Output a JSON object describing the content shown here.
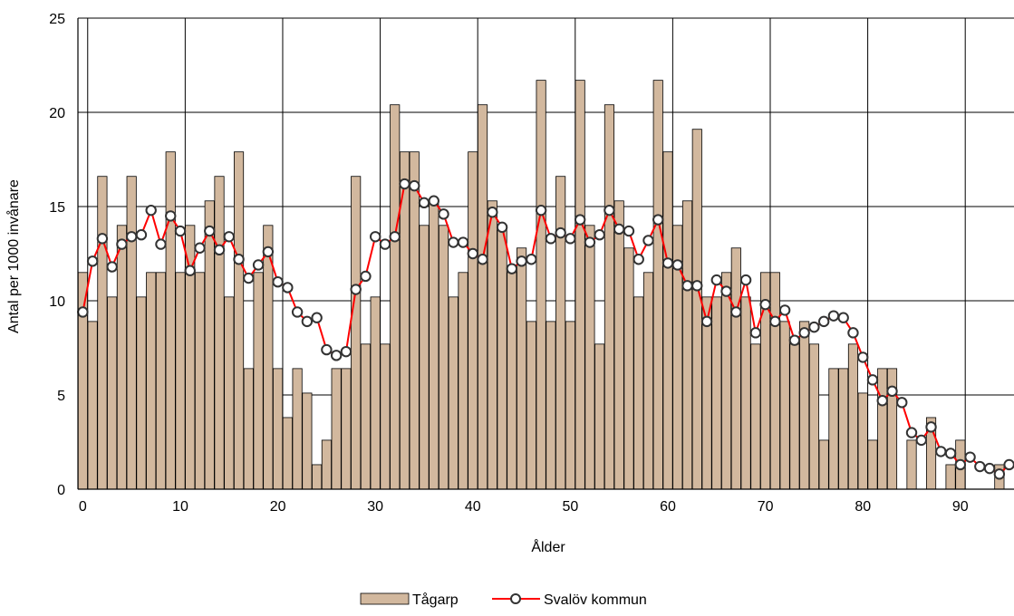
{
  "chart_data": {
    "type": "bar",
    "xlabel": "Ålder",
    "ylabel": "Antal per 1000 invånare",
    "ylim": [
      0,
      25
    ],
    "xlim": [
      -0.5,
      95.5
    ],
    "x_ticks": [
      0,
      10,
      20,
      30,
      40,
      50,
      60,
      70,
      80,
      90
    ],
    "y_ticks": [
      0,
      5,
      10,
      15,
      20,
      25
    ],
    "grid": true,
    "legend_position": "bottom",
    "categories": [
      0,
      1,
      2,
      3,
      4,
      5,
      6,
      7,
      8,
      9,
      10,
      11,
      12,
      13,
      14,
      15,
      16,
      17,
      18,
      19,
      20,
      21,
      22,
      23,
      24,
      25,
      26,
      27,
      28,
      29,
      30,
      31,
      32,
      33,
      34,
      35,
      36,
      37,
      38,
      39,
      40,
      41,
      42,
      43,
      44,
      45,
      46,
      47,
      48,
      49,
      50,
      51,
      52,
      53,
      54,
      55,
      56,
      57,
      58,
      59,
      60,
      61,
      62,
      63,
      64,
      65,
      66,
      67,
      68,
      69,
      70,
      71,
      72,
      73,
      74,
      75,
      76,
      77,
      78,
      79,
      80,
      81,
      82,
      83,
      84,
      85,
      86,
      87,
      88,
      89,
      90,
      91,
      92,
      93,
      94,
      95
    ],
    "series": [
      {
        "name": "Tågarp",
        "kind": "bar",
        "color": "#d2b89e",
        "values": [
          11.5,
          8.9,
          16.6,
          10.2,
          14.0,
          16.6,
          10.2,
          11.5,
          11.5,
          17.9,
          11.5,
          14.0,
          11.5,
          15.3,
          16.6,
          10.2,
          17.9,
          6.4,
          11.5,
          14.0,
          6.4,
          3.8,
          6.4,
          5.1,
          1.3,
          2.6,
          6.4,
          6.4,
          16.6,
          7.7,
          10.2,
          7.7,
          20.4,
          17.9,
          17.9,
          14.0,
          15.3,
          14.0,
          10.2,
          11.5,
          17.9,
          20.4,
          15.3,
          14.0,
          11.5,
          12.8,
          8.9,
          21.7,
          8.9,
          16.6,
          8.9,
          21.7,
          14.0,
          7.7,
          20.4,
          15.3,
          12.8,
          10.2,
          11.5,
          21.7,
          17.9,
          14.0,
          15.3,
          19.1,
          10.2,
          10.2,
          11.5,
          12.8,
          10.2,
          7.7,
          11.5,
          11.5,
          8.9,
          7.7,
          8.9,
          7.7,
          2.6,
          6.4,
          6.4,
          7.7,
          5.1,
          2.6,
          6.4,
          6.4,
          0,
          2.6,
          0,
          3.8,
          0,
          1.3,
          2.6,
          0,
          0,
          0,
          1.3,
          0
        ]
      },
      {
        "name": "Svalöv kommun",
        "kind": "line",
        "color": "#ff0000",
        "values": [
          9.4,
          12.1,
          13.3,
          11.8,
          13.0,
          13.4,
          13.5,
          14.8,
          13.0,
          14.5,
          13.7,
          11.6,
          12.8,
          13.7,
          12.7,
          13.4,
          12.2,
          11.2,
          11.9,
          12.6,
          11.0,
          10.7,
          9.4,
          8.9,
          9.1,
          7.4,
          7.1,
          7.3,
          10.6,
          11.3,
          13.4,
          13.0,
          13.4,
          16.2,
          16.1,
          15.2,
          15.3,
          14.6,
          13.1,
          13.1,
          12.5,
          12.2,
          14.7,
          13.9,
          11.7,
          12.1,
          12.2,
          14.8,
          13.3,
          13.6,
          13.3,
          14.3,
          13.1,
          13.5,
          14.8,
          13.8,
          13.7,
          12.2,
          13.2,
          14.3,
          12.0,
          11.9,
          10.8,
          10.8,
          8.9,
          11.1,
          10.5,
          9.4,
          11.1,
          8.3,
          9.8,
          8.9,
          9.5,
          7.9,
          8.3,
          8.6,
          8.9,
          9.2,
          9.1,
          8.3,
          7.0,
          5.8,
          4.7,
          5.2,
          4.6,
          3.0,
          2.6,
          3.3,
          2.0,
          1.9,
          1.3,
          1.7,
          1.2,
          1.1,
          0.8,
          1.3
        ]
      }
    ]
  }
}
